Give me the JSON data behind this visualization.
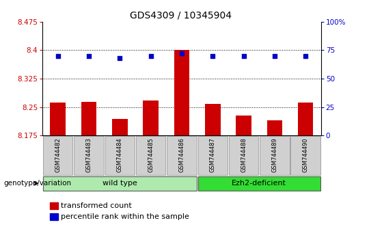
{
  "title": "GDS4309 / 10345904",
  "samples": [
    "GSM744482",
    "GSM744483",
    "GSM744484",
    "GSM744485",
    "GSM744486",
    "GSM744487",
    "GSM744488",
    "GSM744489",
    "GSM744490"
  ],
  "transformed_counts": [
    8.262,
    8.263,
    8.218,
    8.268,
    8.401,
    8.258,
    8.228,
    8.215,
    8.262
  ],
  "percentile_ranks": [
    70,
    70,
    68,
    70,
    72,
    70,
    70,
    70,
    70
  ],
  "ylim_left": [
    8.175,
    8.475
  ],
  "ylim_right": [
    0,
    100
  ],
  "yticks_left": [
    8.175,
    8.25,
    8.325,
    8.4,
    8.475
  ],
  "yticks_right": [
    0,
    25,
    50,
    75,
    100
  ],
  "bar_color": "#cc0000",
  "dot_color": "#0000cc",
  "bar_bottom": 8.175,
  "wt_color": "#aeeaae",
  "ezh_color": "#33dd33",
  "group_label": "genotype/variation",
  "legend_bar_label": "transformed count",
  "legend_dot_label": "percentile rank within the sample",
  "title_fontsize": 10,
  "tick_fontsize": 7.5,
  "sample_fontsize": 6,
  "group_fontsize": 8,
  "legend_fontsize": 8,
  "grid_color": "#000000",
  "left_tick_color": "#cc0000",
  "right_tick_color": "#0000cc",
  "spine_color": "#000000",
  "sample_box_color": "#d0d0d0",
  "sample_box_edge": "#888888"
}
